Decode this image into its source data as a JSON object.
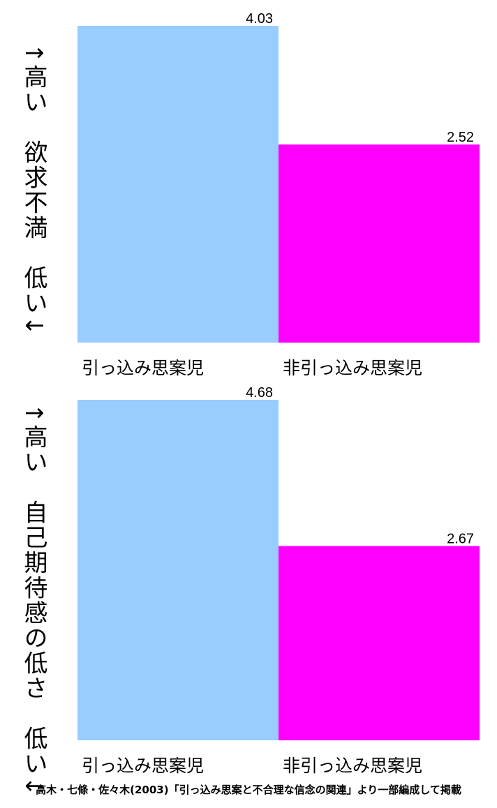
{
  "chart_data": [
    {
      "type": "bar",
      "ylabel": "↑高い　欲求不満　低い↓",
      "categories": [
        "引っ込み思案児",
        "非引っ込み思案児"
      ],
      "values": [
        4.03,
        2.52
      ],
      "colors": [
        "#99ccff",
        "#ff00ff"
      ],
      "ylim": [
        0,
        4.03
      ],
      "grid": false
    },
    {
      "type": "bar",
      "ylabel": "↑高い　自己期待感の低さ　低い↓",
      "categories": [
        "引っ込み思案児",
        "非引っ込み思案児"
      ],
      "values": [
        4.68,
        2.67
      ],
      "colors": [
        "#99ccff",
        "#ff00ff"
      ],
      "ylim": [
        0,
        4.68
      ],
      "grid": false
    }
  ],
  "source": "高木・七條・佐々木(2003)「引っ込み思案と不合理な信念の関連」より一部編成して掲載"
}
